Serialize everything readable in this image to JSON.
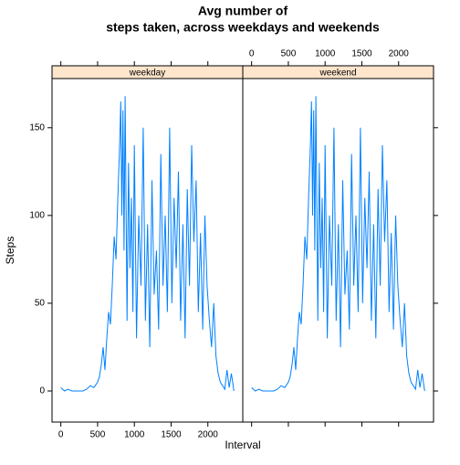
{
  "chart_data": {
    "type": "line",
    "title": [
      "Avg number of",
      "steps taken, across weekdays and weekends"
    ],
    "xlabel": "Interval",
    "ylabel": "Steps",
    "xlim": [
      -120,
      2475
    ],
    "ylim": [
      -17.7,
      178
    ],
    "xticks": [
      0,
      500,
      1000,
      1500,
      2000
    ],
    "yticks": [
      0,
      50,
      100,
      150
    ],
    "color": "#0080ff",
    "strip_color": "#ffe5cc",
    "x": [
      0,
      50,
      100,
      150,
      200,
      250,
      300,
      350,
      400,
      450,
      500,
      525,
      550,
      575,
      600,
      625,
      650,
      675,
      700,
      725,
      750,
      775,
      800,
      815,
      830,
      845,
      860,
      875,
      900,
      920,
      940,
      960,
      980,
      1000,
      1030,
      1060,
      1090,
      1120,
      1150,
      1180,
      1210,
      1240,
      1270,
      1300,
      1330,
      1360,
      1390,
      1420,
      1450,
      1480,
      1510,
      1540,
      1570,
      1600,
      1630,
      1660,
      1690,
      1720,
      1750,
      1780,
      1810,
      1840,
      1870,
      1900,
      1930,
      1960,
      1990,
      2020,
      2050,
      2080,
      2110,
      2140,
      2170,
      2200,
      2230,
      2260,
      2290,
      2320,
      2355
    ],
    "panels": [
      {
        "name": "weekday",
        "values": [
          2,
          0,
          1,
          0,
          0,
          0,
          0,
          1,
          3,
          2,
          5,
          8,
          15,
          25,
          12,
          30,
          45,
          38,
          60,
          88,
          75,
          110,
          140,
          165,
          100,
          160,
          80,
          168,
          40,
          130,
          70,
          110,
          45,
          140,
          30,
          100,
          60,
          150,
          40,
          95,
          25,
          120,
          55,
          80,
          35,
          135,
          60,
          100,
          45,
          150,
          50,
          110,
          70,
          125,
          40,
          95,
          30,
          115,
          60,
          140,
          85,
          120,
          45,
          90,
          35,
          100,
          60,
          40,
          25,
          50,
          20,
          10,
          5,
          3,
          1,
          12,
          2,
          10,
          0
        ]
      },
      {
        "name": "weekend",
        "values": [
          2,
          0,
          1,
          0,
          0,
          0,
          0,
          1,
          3,
          2,
          5,
          8,
          15,
          25,
          12,
          30,
          45,
          38,
          60,
          88,
          75,
          110,
          140,
          165,
          100,
          160,
          80,
          168,
          40,
          130,
          70,
          110,
          45,
          140,
          30,
          100,
          60,
          150,
          40,
          95,
          25,
          120,
          55,
          80,
          35,
          135,
          60,
          100,
          45,
          150,
          50,
          110,
          70,
          125,
          40,
          95,
          30,
          115,
          60,
          140,
          85,
          120,
          45,
          90,
          35,
          100,
          60,
          40,
          25,
          50,
          20,
          10,
          5,
          3,
          1,
          12,
          2,
          10,
          0
        ]
      }
    ]
  }
}
